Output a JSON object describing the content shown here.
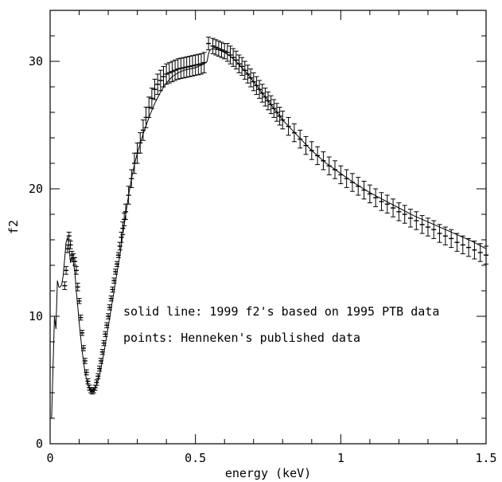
{
  "chart_data": {
    "type": "line",
    "xlabel": "energy (keV)",
    "ylabel": "f2",
    "xlim": [
      0,
      1.5
    ],
    "ylim": [
      0,
      34
    ],
    "xticks": [
      0,
      0.5,
      1,
      1.5
    ],
    "xtick_labels": [
      "0",
      "0.5",
      "1",
      "1.5"
    ],
    "yticks": [
      0,
      10,
      20,
      30
    ],
    "ytick_labels": [
      "0",
      "10",
      "20",
      "30"
    ],
    "grid": false,
    "annotations": [
      "solid line: 1999 f2's based on 1995 PTB data",
      "points: Henneken's published data"
    ],
    "series": [
      {
        "style": "solid-line",
        "x": [
          0.005,
          0.01,
          0.015,
          0.02,
          0.025,
          0.03,
          0.035,
          0.04,
          0.045,
          0.05,
          0.055,
          0.06,
          0.065,
          0.07,
          0.075,
          0.08,
          0.085,
          0.09,
          0.095,
          0.1,
          0.11,
          0.12,
          0.13,
          0.14,
          0.15,
          0.16,
          0.17,
          0.18,
          0.19,
          0.2,
          0.21,
          0.22,
          0.23,
          0.24,
          0.25,
          0.26,
          0.27,
          0.28,
          0.29,
          0.3,
          0.32,
          0.34,
          0.36,
          0.38,
          0.4,
          0.42,
          0.44,
          0.46,
          0.48,
          0.5,
          0.52,
          0.53,
          0.54,
          0.545,
          0.55,
          0.56,
          0.58,
          0.6,
          0.62,
          0.64,
          0.66,
          0.68,
          0.7,
          0.72,
          0.74,
          0.76,
          0.78,
          0.8,
          0.85,
          0.9,
          0.95,
          1.0,
          1.05,
          1.1,
          1.15,
          1.2,
          1.25,
          1.3,
          1.35,
          1.4,
          1.45,
          1.5
        ],
        "y": [
          2,
          6,
          10,
          9,
          12.8,
          12.3,
          12.3,
          12.5,
          13.2,
          14.5,
          15.8,
          16.2,
          15.5,
          14.2,
          14.6,
          14.2,
          13.5,
          12,
          10.8,
          9.5,
          7.3,
          5.6,
          4.6,
          4.1,
          4.1,
          4.6,
          5.4,
          6.5,
          7.8,
          9.2,
          10.6,
          12,
          13.4,
          14.8,
          16.4,
          18,
          19.5,
          20.8,
          21.9,
          22.8,
          24.3,
          25.6,
          26.7,
          27.6,
          28.3,
          28.8,
          29.1,
          29.3,
          29.4,
          29.5,
          29.7,
          29.8,
          30.0,
          30.6,
          30.9,
          31.0,
          30.9,
          30.7,
          30.4,
          30.0,
          29.5,
          29.0,
          28.4,
          27.8,
          27.2,
          26.6,
          26.0,
          25.4,
          24.2,
          23.0,
          22.0,
          21.2,
          20.4,
          19.7,
          19.1,
          18.5,
          17.9,
          17.4,
          16.9,
          16.4,
          15.9,
          15.3
        ]
      },
      {
        "style": "points-with-errorbars",
        "x": [
          0.05,
          0.055,
          0.06,
          0.065,
          0.07,
          0.075,
          0.08,
          0.085,
          0.09,
          0.095,
          0.1,
          0.105,
          0.11,
          0.115,
          0.12,
          0.125,
          0.13,
          0.135,
          0.14,
          0.145,
          0.15,
          0.155,
          0.16,
          0.165,
          0.17,
          0.175,
          0.18,
          0.185,
          0.19,
          0.195,
          0.2,
          0.205,
          0.21,
          0.215,
          0.22,
          0.225,
          0.23,
          0.235,
          0.24,
          0.245,
          0.25,
          0.255,
          0.26,
          0.27,
          0.28,
          0.29,
          0.3,
          0.31,
          0.32,
          0.33,
          0.34,
          0.35,
          0.36,
          0.37,
          0.38,
          0.39,
          0.4,
          0.41,
          0.42,
          0.43,
          0.44,
          0.45,
          0.46,
          0.47,
          0.48,
          0.49,
          0.5,
          0.51,
          0.52,
          0.53,
          0.545,
          0.56,
          0.57,
          0.58,
          0.59,
          0.6,
          0.61,
          0.62,
          0.63,
          0.64,
          0.65,
          0.66,
          0.67,
          0.68,
          0.69,
          0.7,
          0.71,
          0.72,
          0.73,
          0.74,
          0.75,
          0.76,
          0.77,
          0.78,
          0.79,
          0.8,
          0.82,
          0.84,
          0.86,
          0.88,
          0.9,
          0.92,
          0.94,
          0.96,
          0.98,
          1.0,
          1.02,
          1.04,
          1.06,
          1.08,
          1.1,
          1.12,
          1.14,
          1.16,
          1.18,
          1.2,
          1.22,
          1.24,
          1.26,
          1.28,
          1.3,
          1.32,
          1.34,
          1.36,
          1.38,
          1.4,
          1.42,
          1.44,
          1.46,
          1.48,
          1.5
        ],
        "y": [
          12.4,
          13.6,
          15.3,
          16.3,
          15.6,
          14.8,
          14.6,
          14.3,
          13.6,
          12.3,
          11.2,
          9.9,
          8.7,
          7.5,
          6.5,
          5.6,
          4.9,
          4.4,
          4.2,
          4.1,
          4.2,
          4.4,
          4.8,
          5.3,
          5.9,
          6.5,
          7.2,
          7.9,
          8.6,
          9.3,
          10.0,
          10.7,
          11.4,
          12.1,
          12.8,
          13.5,
          14.1,
          14.8,
          15.5,
          16.2,
          16.9,
          17.6,
          18.2,
          19.5,
          20.8,
          22.0,
          22.8,
          23.6,
          24.6,
          25.6,
          26.4,
          27.1,
          27.8,
          28.2,
          28.5,
          28.8,
          29.0,
          29.1,
          29.2,
          29.3,
          29.4,
          29.45,
          29.5,
          29.55,
          29.6,
          29.65,
          29.7,
          29.75,
          29.8,
          29.9,
          31.4,
          31.2,
          31.1,
          31.0,
          30.9,
          30.8,
          30.7,
          30.5,
          30.3,
          30.1,
          29.8,
          29.6,
          29.3,
          29.0,
          28.7,
          28.4,
          28.1,
          27.8,
          27.5,
          27.2,
          26.9,
          26.6,
          26.3,
          26.0,
          25.7,
          25.4,
          24.9,
          24.4,
          23.9,
          23.4,
          23.0,
          22.6,
          22.2,
          21.8,
          21.5,
          21.1,
          20.8,
          20.5,
          20.2,
          19.9,
          19.6,
          19.3,
          19.0,
          18.8,
          18.5,
          18.2,
          18.0,
          17.7,
          17.5,
          17.2,
          17.0,
          16.8,
          16.5,
          16.3,
          16.1,
          15.8,
          15.6,
          15.4,
          15.2,
          15.0,
          14.8
        ],
        "yerr": [
          0.3,
          0.3,
          0.3,
          0.3,
          0.3,
          0.3,
          0.3,
          0.3,
          0.3,
          0.3,
          0.2,
          0.2,
          0.2,
          0.2,
          0.2,
          0.2,
          0.2,
          0.2,
          0.2,
          0.2,
          0.2,
          0.2,
          0.2,
          0.2,
          0.2,
          0.2,
          0.2,
          0.2,
          0.2,
          0.2,
          0.2,
          0.2,
          0.2,
          0.2,
          0.2,
          0.2,
          0.2,
          0.2,
          0.3,
          0.4,
          0.5,
          0.5,
          0.6,
          0.7,
          0.7,
          0.8,
          0.8,
          0.8,
          0.8,
          0.8,
          0.8,
          0.8,
          0.8,
          0.8,
          0.8,
          0.8,
          0.8,
          0.8,
          0.8,
          0.8,
          0.8,
          0.8,
          0.8,
          0.8,
          0.8,
          0.8,
          0.8,
          0.8,
          0.8,
          0.8,
          0.5,
          0.6,
          0.6,
          0.6,
          0.6,
          0.6,
          0.7,
          0.7,
          0.7,
          0.7,
          0.7,
          0.7,
          0.7,
          0.7,
          0.7,
          0.7,
          0.7,
          0.7,
          0.7,
          0.7,
          0.7,
          0.7,
          0.7,
          0.7,
          0.7,
          0.7,
          0.7,
          0.7,
          0.7,
          0.7,
          0.7,
          0.7,
          0.7,
          0.7,
          0.7,
          0.7,
          0.7,
          0.7,
          0.7,
          0.7,
          0.7,
          0.7,
          0.7,
          0.7,
          0.7,
          0.7,
          0.7,
          0.7,
          0.7,
          0.7,
          0.7,
          0.7,
          0.7,
          0.7,
          0.7,
          0.7,
          0.7,
          0.7,
          0.7,
          0.7,
          0.7
        ]
      }
    ]
  }
}
